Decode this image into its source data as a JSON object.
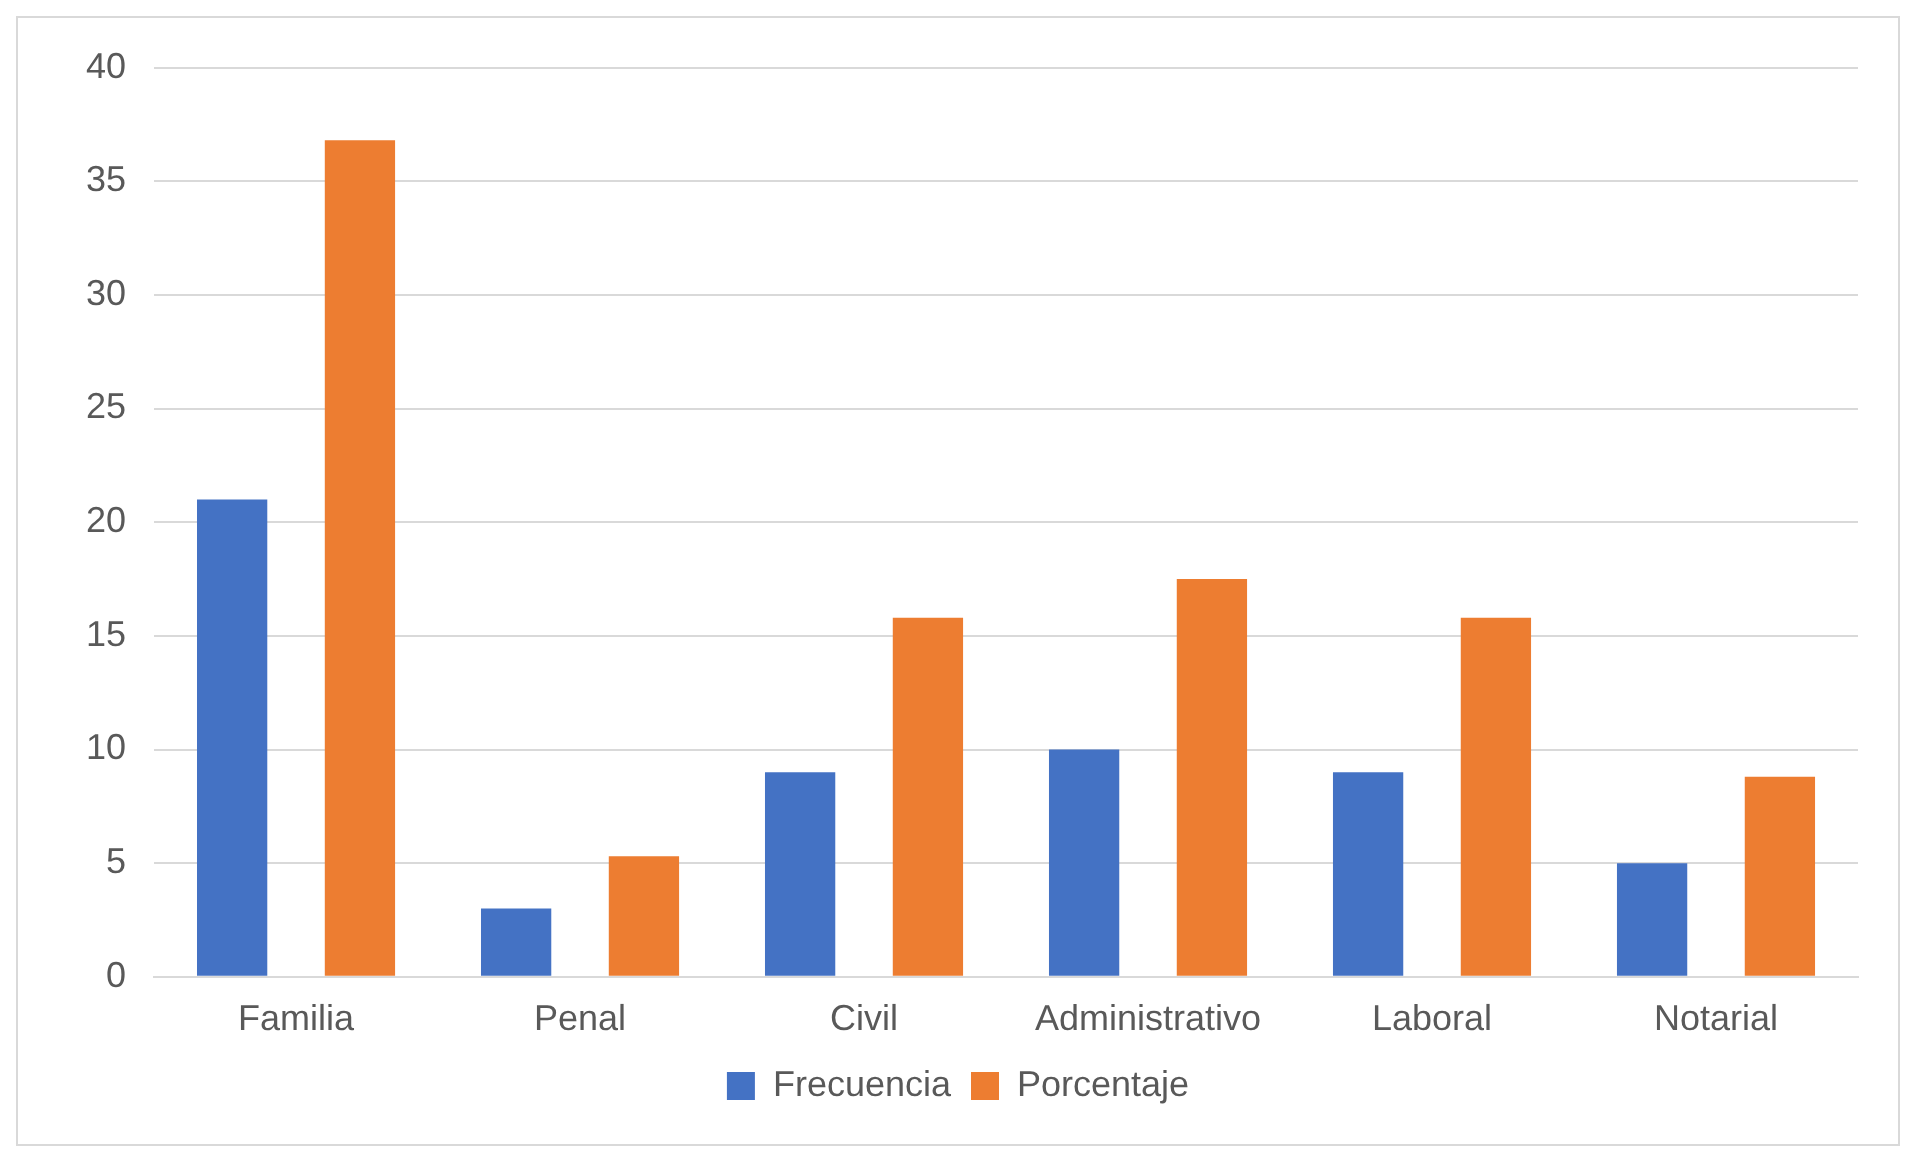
{
  "chart_data": {
    "type": "bar",
    "categories": [
      "Familia",
      "Penal",
      "Civil",
      "Administrativo",
      "Laboral",
      "Notarial"
    ],
    "series": [
      {
        "name": "Frecuencia",
        "color": "#4472c4",
        "values": [
          21,
          3,
          9,
          10,
          9,
          5
        ]
      },
      {
        "name": "Porcentaje",
        "color": "#ed7d31",
        "values": [
          36.8,
          5.3,
          15.8,
          17.5,
          15.8,
          8.8
        ]
      }
    ],
    "ylim": [
      0,
      40
    ],
    "yticks": [
      0,
      5,
      10,
      15,
      20,
      25,
      30,
      35,
      40
    ],
    "grid": "y",
    "legend": "bottom"
  }
}
